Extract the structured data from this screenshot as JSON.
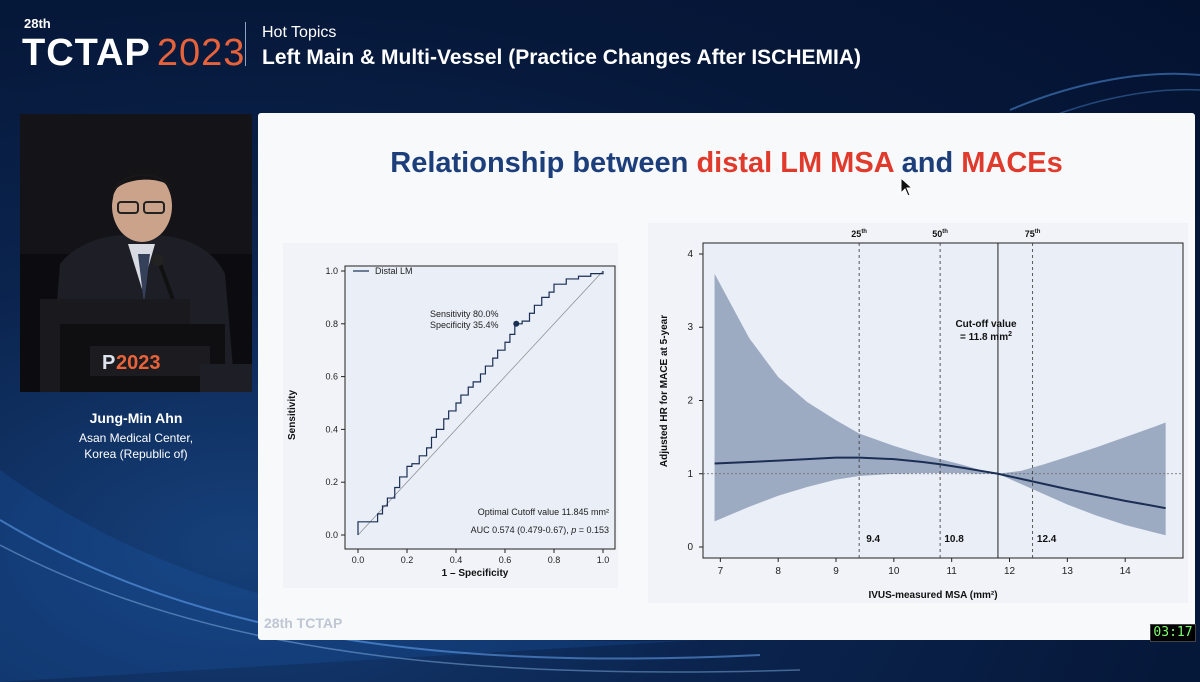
{
  "header": {
    "edition": "28th",
    "brand": "TCTAP",
    "year": "2023",
    "topic_label": "Hot Topics",
    "topic_title": "Left Main & Multi-Vessel (Practice Changes After ISCHEMIA)"
  },
  "speaker": {
    "name": "Jung-Min Ahn",
    "affiliation_line1": "Asan Medical Center,",
    "affiliation_line2": "Korea (Republic of)",
    "podium_year": "2023",
    "podium_partial": "P"
  },
  "slide": {
    "title_part1": "Relationship between ",
    "title_part2": "distal LM MSA",
    "title_part3": " and ",
    "title_part4": "MACEs",
    "footer_logo": "28th TCTAP"
  },
  "clock": "03:17",
  "colors": {
    "title_blue": "#1c3e7a",
    "title_red": "#e03a2c",
    "curve_navy": "#1b2f55",
    "band_fill": "#8e9db8",
    "panel_bg": "#e9eef7"
  },
  "chart_data": [
    {
      "type": "line",
      "series": [
        {
          "name": "Distal LM",
          "x": [
            0.0,
            0.0,
            0.05,
            0.08,
            0.1,
            0.12,
            0.15,
            0.17,
            0.2,
            0.22,
            0.25,
            0.28,
            0.3,
            0.32,
            0.35,
            0.37,
            0.4,
            0.42,
            0.45,
            0.47,
            0.5,
            0.52,
            0.55,
            0.57,
            0.6,
            0.62,
            0.64,
            0.67,
            0.7,
            0.72,
            0.75,
            0.78,
            0.8,
            0.85,
            0.9,
            0.95,
            1.0
          ],
          "y": [
            0.0,
            0.05,
            0.05,
            0.08,
            0.11,
            0.14,
            0.18,
            0.22,
            0.26,
            0.27,
            0.3,
            0.33,
            0.37,
            0.4,
            0.44,
            0.47,
            0.5,
            0.53,
            0.56,
            0.58,
            0.61,
            0.64,
            0.67,
            0.7,
            0.73,
            0.76,
            0.8,
            0.81,
            0.84,
            0.87,
            0.9,
            0.92,
            0.95,
            0.97,
            0.98,
            0.99,
            1.0
          ]
        }
      ],
      "xlabel": "1 – Specificity",
      "ylabel": "Sensitivity",
      "xlim": [
        0,
        1
      ],
      "ylim": [
        0,
        1
      ],
      "xticks": [
        "0.0",
        "0.2",
        "0.4",
        "0.6",
        "0.8",
        "1.0"
      ],
      "yticks": [
        "0.0",
        "0.2",
        "0.4",
        "0.6",
        "0.8",
        "1.0"
      ],
      "legend": "top-left",
      "legend_label": "Distal LM",
      "annotation_point": {
        "x": 0.646,
        "y": 0.8
      },
      "annotation_line1": "Sensitivity 80.0%",
      "annotation_line2": "Specificity 35.4%",
      "cutoff_text": "Optimal Cutoff value  11.845 mm²",
      "auc_text_1": "AUC 0.574 (0.479-0.67), ",
      "auc_text_p": "p",
      "auc_text_2": " = 0.153",
      "grid": false
    },
    {
      "type": "line",
      "series": [
        {
          "name": "",
          "x": [
            6.9,
            7.5,
            8.0,
            8.5,
            9.0,
            9.4,
            10.0,
            10.5,
            10.8,
            11.2,
            11.5,
            11.8,
            12.2,
            12.6,
            13.0,
            13.5,
            14.0,
            14.5,
            14.7
          ],
          "y": [
            1.14,
            1.16,
            1.18,
            1.2,
            1.22,
            1.22,
            1.2,
            1.16,
            1.13,
            1.08,
            1.04,
            1.0,
            0.93,
            0.86,
            0.79,
            0.71,
            0.63,
            0.56,
            0.53
          ],
          "lower": [
            0.35,
            0.55,
            0.7,
            0.82,
            0.92,
            0.97,
            1.0,
            1.01,
            1.01,
            1.01,
            1.0,
            1.0,
            0.86,
            0.72,
            0.58,
            0.43,
            0.3,
            0.2,
            0.16
          ],
          "upper": [
            3.73,
            2.85,
            2.32,
            1.98,
            1.73,
            1.55,
            1.38,
            1.26,
            1.2,
            1.12,
            1.05,
            1.0,
            1.04,
            1.13,
            1.23,
            1.36,
            1.5,
            1.64,
            1.7
          ]
        }
      ],
      "xlabel": "IVUS-measured MSA (mm²)",
      "ylabel": "Adjusted HR for MACE at 5-year",
      "xlim": [
        6.7,
        15.0
      ],
      "ylim": [
        -0.15,
        4.15
      ],
      "xticks": [
        "7",
        "8",
        "9",
        "10",
        "11",
        "12",
        "13",
        "14"
      ],
      "yticks": [
        "0",
        "1",
        "2",
        "3",
        "4"
      ],
      "reference_y": 1,
      "percentiles": [
        {
          "x": 9.4,
          "label": "25",
          "suffix": "th",
          "value_label": "9.4"
        },
        {
          "x": 10.8,
          "label": "50",
          "suffix": "th",
          "value_label": "10.8"
        },
        {
          "x": 12.4,
          "label": "75",
          "suffix": "th",
          "value_label": "12.4"
        }
      ],
      "cutoff_x": 11.8,
      "cutoff_line1": "Cut-off value",
      "cutoff_line2_pre": "= 11.8 mm",
      "cutoff_line2_sup": "2",
      "grid": false
    }
  ]
}
